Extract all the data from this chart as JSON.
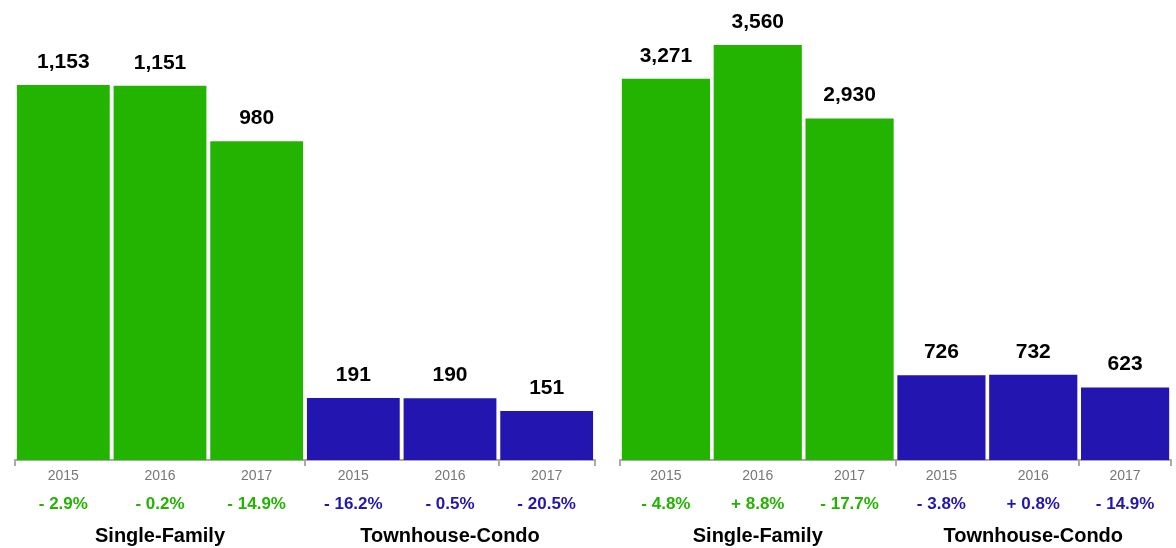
{
  "chart_data": [
    {
      "type": "bar",
      "categories": [
        "2015",
        "2016",
        "2017",
        "2015",
        "2016",
        "2017"
      ],
      "series": [
        {
          "color": "#22b400",
          "values": [
            1153,
            1151,
            980,
            null,
            null,
            null
          ],
          "value_labels": [
            "1,153",
            "1,151",
            "980",
            null,
            null,
            null
          ]
        },
        {
          "color": "#2316b0",
          "values": [
            null,
            null,
            null,
            191,
            190,
            151
          ],
          "value_labels": [
            null,
            null,
            null,
            "191",
            "190",
            "151"
          ]
        }
      ],
      "annotations": [
        "- 2.9%",
        "- 0.2%",
        "- 14.9%",
        "- 16.2%",
        "- 0.5%",
        "- 20.5%",
        "Single-Family",
        "Townhouse-Condo"
      ]
    },
    {
      "type": "bar",
      "categories": [
        "2015",
        "2016",
        "2017",
        "2015",
        "2016",
        "2017"
      ],
      "series": [
        {
          "color": "#22b400",
          "values": [
            3271,
            3560,
            2930,
            null,
            null,
            null
          ],
          "value_labels": [
            "3,271",
            "3,560",
            "2,930",
            null,
            null,
            null
          ]
        },
        {
          "color": "#2316b0",
          "values": [
            null,
            null,
            null,
            726,
            732,
            623
          ],
          "value_labels": [
            null,
            null,
            null,
            "726",
            "732",
            "623"
          ]
        }
      ],
      "annotations": [
        "- 4.8%",
        "+ 8.8%",
        "- 17.7%",
        "- 3.8%",
        "+ 0.8%",
        "- 14.9%",
        "Single-Family",
        "Townhouse-Condo"
      ]
    }
  ]
}
